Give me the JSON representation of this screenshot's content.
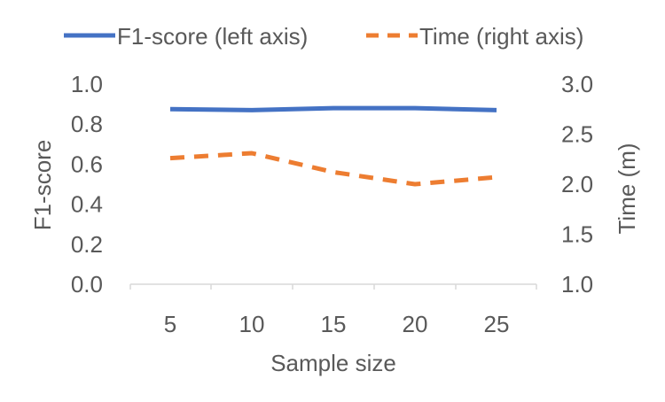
{
  "chart_data": {
    "type": "line",
    "x": [
      5,
      10,
      15,
      20,
      25
    ],
    "xlabel": "Sample size",
    "ylabel_left": "F1-score",
    "ylabel_right": "Time (m)",
    "ylim_left": [
      0.0,
      1.0
    ],
    "ylim_right": [
      1.0,
      3.0
    ],
    "yticks_left": [
      "0.0",
      "0.2",
      "0.4",
      "0.6",
      "0.8",
      "1.0"
    ],
    "yticks_right": [
      "1.0",
      "1.5",
      "2.0",
      "2.5",
      "3.0"
    ],
    "xticks": [
      "5",
      "10",
      "15",
      "20",
      "25"
    ],
    "legend_position": "top",
    "grid": false,
    "series": [
      {
        "name": "F1-score (left axis)",
        "axis": "left",
        "values": [
          0.875,
          0.87,
          0.88,
          0.88,
          0.87
        ],
        "color": "#4472C4",
        "style": "solid"
      },
      {
        "name": "Time (right axis)",
        "axis": "right",
        "values": [
          2.26,
          2.31,
          2.12,
          2.0,
          2.07
        ],
        "color": "#ED7D31",
        "style": "dashed"
      }
    ]
  }
}
